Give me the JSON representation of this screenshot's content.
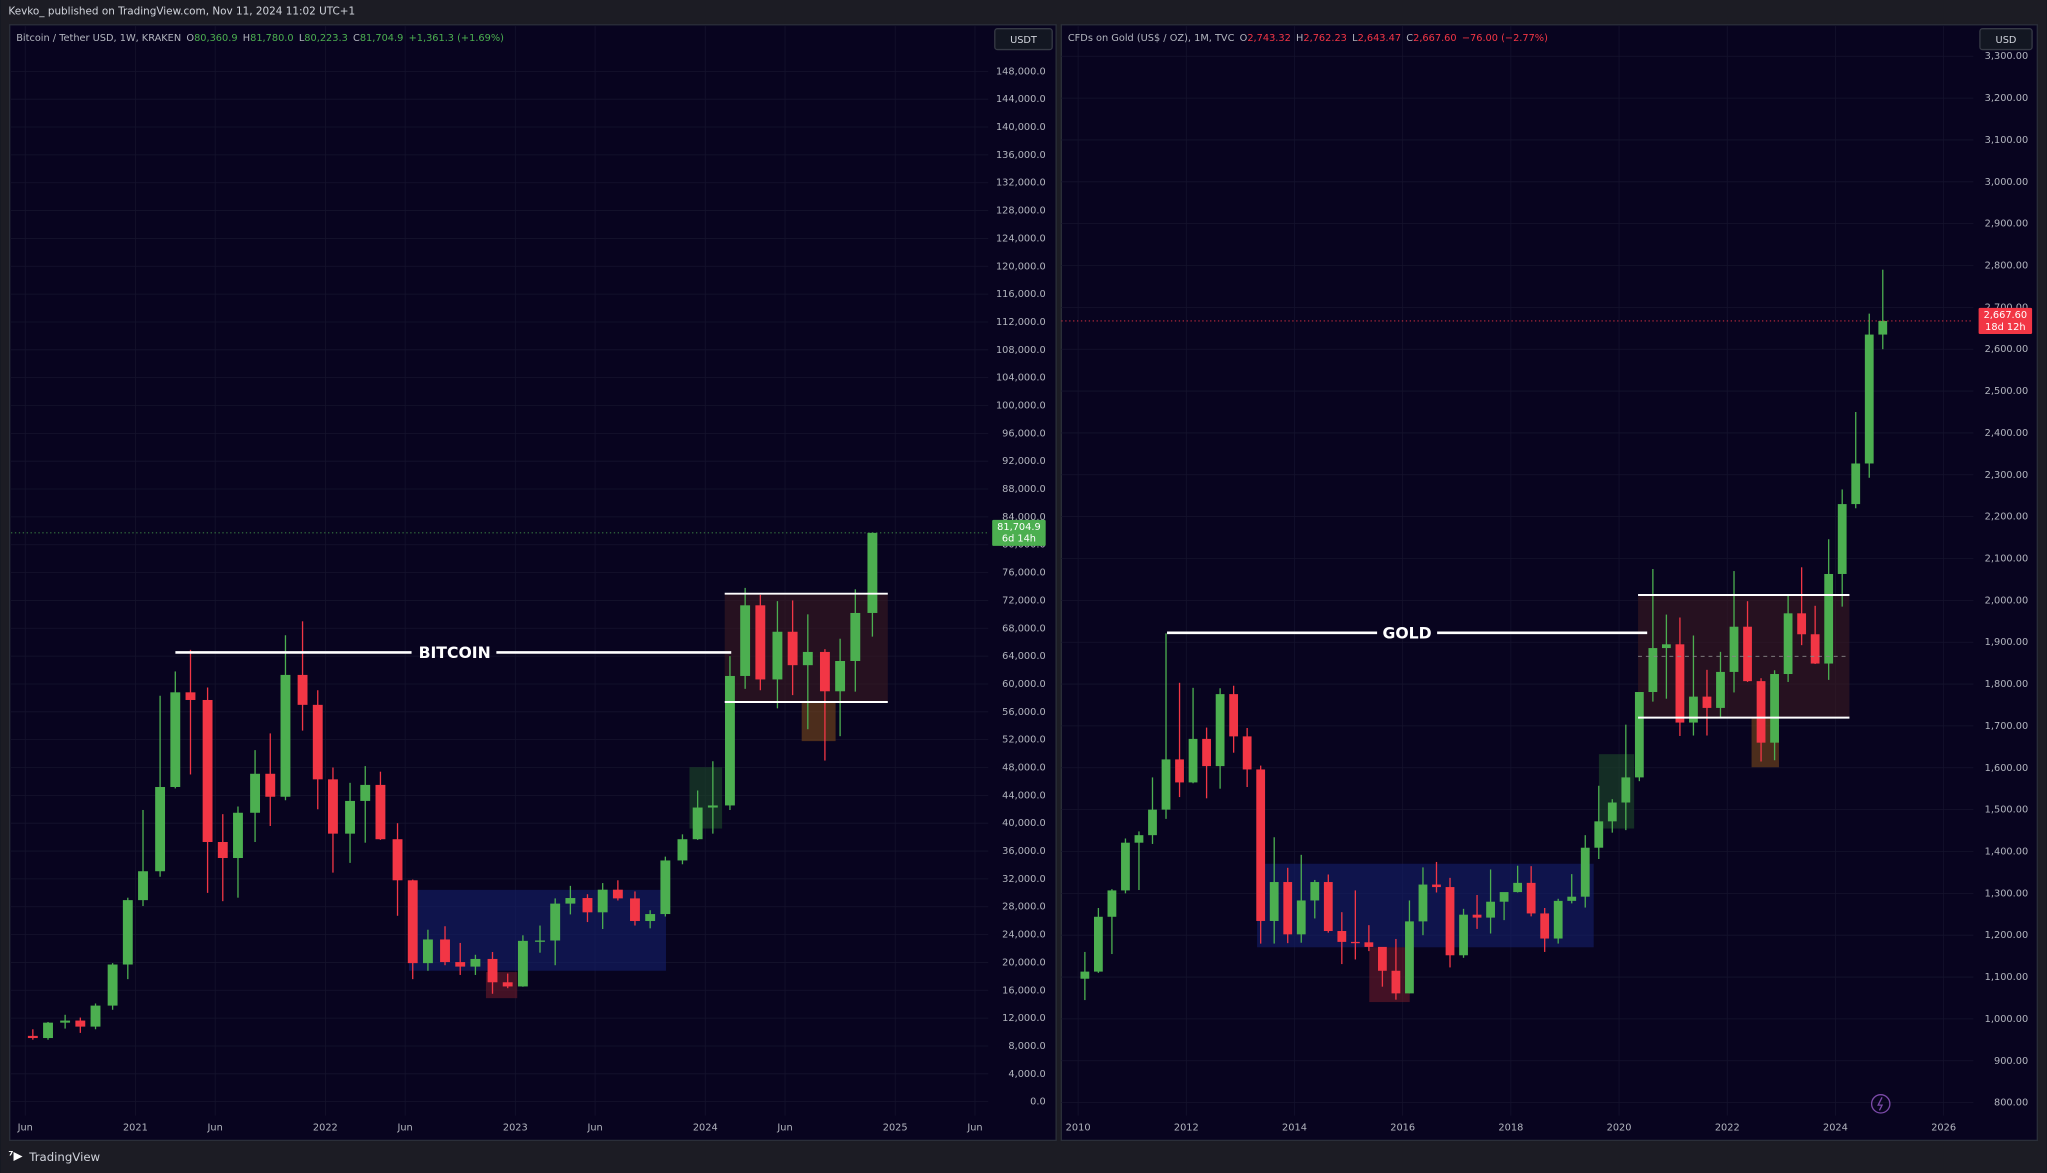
{
  "header": {
    "author": "Kevko_ published on TradingView.com, Nov 11, 2024 11:02 UTC+1"
  },
  "footer": {
    "brand": "TradingView"
  },
  "chart_data": [
    {
      "type": "candlestick",
      "legend": {
        "symbol": "Bitcoin / Tether USD, 1W, KRAKEN",
        "color": "#4caf50",
        "ohlc": [
          {
            "label": "O",
            "value": "80,360.9"
          },
          {
            "label": "H",
            "value": "81,780.0"
          },
          {
            "label": "L",
            "value": "80,223.3"
          },
          {
            "label": "C",
            "value": "81,704.9"
          }
        ],
        "change": "+1,361.3 (+1.69%)"
      },
      "currency": "USDT",
      "annotation": "BITCOIN",
      "price_tag": {
        "price": "81,704.9",
        "countdown": "6d 14h",
        "color": "#4caf50"
      },
      "up_color": "#4caf50",
      "down_color": "#f23645",
      "grid": true,
      "xlim": [
        2020.345,
        2025.49
      ],
      "xticks": [
        {
          "value": 2020.42,
          "label": "Jun"
        },
        {
          "value": 2021,
          "label": "2021"
        },
        {
          "value": 2021.42,
          "label": "Jun"
        },
        {
          "value": 2022,
          "label": "2022"
        },
        {
          "value": 2022.42,
          "label": "Jun"
        },
        {
          "value": 2023,
          "label": "2023"
        },
        {
          "value": 2023.42,
          "label": "Jun"
        },
        {
          "value": 2024,
          "label": "2024"
        },
        {
          "value": 2024.42,
          "label": "Jun"
        },
        {
          "value": 2025,
          "label": "2025"
        },
        {
          "value": 2025.42,
          "label": "Jun"
        }
      ],
      "ylim": [
        -2000,
        154500
      ],
      "yticks": [
        {
          "value": 0,
          "label": "0.0"
        },
        {
          "value": 4000,
          "label": "4,000.0"
        },
        {
          "value": 8000,
          "label": "8,000.0"
        },
        {
          "value": 12000,
          "label": "12,000.0"
        },
        {
          "value": 16000,
          "label": "16,000.0"
        },
        {
          "value": 20000,
          "label": "20,000.0"
        },
        {
          "value": 24000,
          "label": "24,000.0"
        },
        {
          "value": 28000,
          "label": "28,000.0"
        },
        {
          "value": 32000,
          "label": "32,000.0"
        },
        {
          "value": 36000,
          "label": "36,000.0"
        },
        {
          "value": 40000,
          "label": "40,000.0"
        },
        {
          "value": 44000,
          "label": "44,000.0"
        },
        {
          "value": 48000,
          "label": "48,000.0"
        },
        {
          "value": 52000,
          "label": "52,000.0"
        },
        {
          "value": 56000,
          "label": "56,000.0"
        },
        {
          "value": 60000,
          "label": "60,000.0"
        },
        {
          "value": 64000,
          "label": "64,000.0"
        },
        {
          "value": 68000,
          "label": "68,000.0"
        },
        {
          "value": 72000,
          "label": "72,000.0"
        },
        {
          "value": 76000,
          "label": "76,000.0"
        },
        {
          "value": 80000,
          "label": "80,000.0"
        },
        {
          "value": 84000,
          "label": "84,000.0"
        },
        {
          "value": 88000,
          "label": "88,000.0"
        },
        {
          "value": 92000,
          "label": "92,000.0"
        },
        {
          "value": 96000,
          "label": "96,000.0"
        },
        {
          "value": 100000,
          "label": "100,000.0"
        },
        {
          "value": 104000,
          "label": "104,000.0"
        },
        {
          "value": 108000,
          "label": "108,000.0"
        },
        {
          "value": 112000,
          "label": "112,000.0"
        },
        {
          "value": 116000,
          "label": "116,000.0"
        },
        {
          "value": 120000,
          "label": "120,000.0"
        },
        {
          "value": 124000,
          "label": "124,000.0"
        },
        {
          "value": 128000,
          "label": "128,000.0"
        },
        {
          "value": 132000,
          "label": "132,000.0"
        },
        {
          "value": 136000,
          "label": "136,000.0"
        },
        {
          "value": 140000,
          "label": "140,000.0"
        },
        {
          "value": 144000,
          "label": "144,000.0"
        },
        {
          "value": 148000,
          "label": "148,000.0"
        }
      ],
      "x": [
        2020.46,
        2020.54,
        2020.63,
        2020.71,
        2020.79,
        2020.88,
        2020.96,
        2021.04,
        2021.13,
        2021.21,
        2021.29,
        2021.38,
        2021.46,
        2021.54,
        2021.63,
        2021.71,
        2021.79,
        2021.88,
        2021.96,
        2022.04,
        2022.13,
        2022.21,
        2022.29,
        2022.38,
        2022.46,
        2022.54,
        2022.63,
        2022.71,
        2022.79,
        2022.88,
        2022.96,
        2023.04,
        2023.13,
        2023.21,
        2023.29,
        2023.38,
        2023.46,
        2023.54,
        2023.63,
        2023.71,
        2023.79,
        2023.88,
        2023.96,
        2024.04,
        2024.13,
        2024.21,
        2024.29,
        2024.38,
        2024.46,
        2024.54,
        2024.63,
        2024.71,
        2024.79,
        2024.88
      ],
      "open": [
        9450,
        9140,
        11350,
        11650,
        10780,
        13800,
        19700,
        28950,
        33100,
        45200,
        58800,
        57700,
        37300,
        35000,
        41500,
        47100,
        43800,
        61300,
        57000,
        46300,
        38500,
        43200,
        45500,
        37700,
        31800,
        19900,
        23300,
        20050,
        19400,
        20500,
        17150,
        16550,
        23100,
        23150,
        28450,
        29250,
        27200,
        30450,
        29200,
        25950,
        26950,
        34650,
        37700,
        42250,
        42550,
        61150,
        71300,
        60650,
        67500,
        62700,
        64600,
        58950,
        63300,
        70200
      ],
      "high": [
        10400,
        11450,
        12480,
        12080,
        14100,
        19900,
        29300,
        41900,
        58300,
        61800,
        64900,
        59500,
        41300,
        42400,
        50500,
        52900,
        67000,
        69000,
        59100,
        48000,
        45800,
        48200,
        47400,
        40000,
        31900,
        24700,
        25200,
        22800,
        21100,
        21500,
        18400,
        23900,
        25300,
        29200,
        31000,
        29800,
        31400,
        31800,
        30200,
        27500,
        35200,
        38400,
        44700,
        48900,
        64000,
        73800,
        72800,
        71900,
        72000,
        70000,
        65000,
        66500,
        73600,
        81780
      ],
      "low": [
        8900,
        8900,
        10500,
        9880,
        10400,
        13200,
        17600,
        28100,
        32300,
        45000,
        47000,
        30000,
        28800,
        29300,
        37300,
        39600,
        43300,
        53300,
        42000,
        32900,
        34300,
        37200,
        37600,
        26700,
        17600,
        18800,
        19600,
        18200,
        18200,
        15500,
        16300,
        16500,
        21400,
        19600,
        26900,
        25800,
        24800,
        28900,
        25300,
        24900,
        26600,
        34100,
        37600,
        38500,
        41900,
        59300,
        59100,
        56500,
        58400,
        53500,
        49000,
        52500,
        58900,
        66800
      ],
      "close": [
        9140,
        11350,
        11650,
        10780,
        13800,
        19700,
        28950,
        33100,
        45200,
        58800,
        57700,
        37300,
        35000,
        41500,
        47100,
        43800,
        61300,
        57000,
        46300,
        38500,
        43200,
        45500,
        37700,
        31800,
        19900,
        23300,
        20050,
        19400,
        20500,
        17150,
        16550,
        23100,
        23150,
        28450,
        29250,
        27200,
        30450,
        29200,
        25950,
        26950,
        34650,
        37700,
        42250,
        42550,
        61150,
        71300,
        60650,
        67500,
        62700,
        64600,
        58950,
        63300,
        70200,
        81704.9
      ]
    },
    {
      "type": "candlestick",
      "legend": {
        "symbol": "CFDs on Gold (US$ / OZ), 1M, TVC",
        "color": "#f23645",
        "ohlc": [
          {
            "label": "O",
            "value": "2,743.32"
          },
          {
            "label": "H",
            "value": "2,762.23"
          },
          {
            "label": "L",
            "value": "2,643.47"
          },
          {
            "label": "C",
            "value": "2,667.60"
          }
        ],
        "change": "−76.00 (−2.77%)"
      },
      "currency": "USD",
      "annotation": "GOLD",
      "price_tag": {
        "price": "2,667.60",
        "countdown": "18d 12h",
        "color": "#f23645"
      },
      "up_color": "#4caf50",
      "down_color": "#f23645",
      "grid": true,
      "xlim": [
        2009.69,
        2026.55
      ],
      "xticks": [
        2010,
        2012,
        2014,
        2016,
        2018,
        2020,
        2022,
        2024,
        2026
      ],
      "ylim": [
        769,
        3372
      ],
      "yticks": [
        {
          "value": 800,
          "label": "800.00"
        },
        {
          "value": 900,
          "label": "900.00"
        },
        {
          "value": 1000,
          "label": "1,000.00"
        },
        {
          "value": 1100,
          "label": "1,100.00"
        },
        {
          "value": 1200,
          "label": "1,200.00"
        },
        {
          "value": 1300,
          "label": "1,300.00"
        },
        {
          "value": 1400,
          "label": "1,400.00"
        },
        {
          "value": 1500,
          "label": "1,500.00"
        },
        {
          "value": 1600,
          "label": "1,600.00"
        },
        {
          "value": 1700,
          "label": "1,700.00"
        },
        {
          "value": 1800,
          "label": "1,800.00"
        },
        {
          "value": 1900,
          "label": "1,900.00"
        },
        {
          "value": 2000,
          "label": "2,000.00"
        },
        {
          "value": 2100,
          "label": "2,100.00"
        },
        {
          "value": 2200,
          "label": "2,200.00"
        },
        {
          "value": 2300,
          "label": "2,300.00"
        },
        {
          "value": 2400,
          "label": "2,400.00"
        },
        {
          "value": 2500,
          "label": "2,500.00"
        },
        {
          "value": 2600,
          "label": "2,600.00"
        },
        {
          "value": 2700,
          "label": "2,700.00"
        },
        {
          "value": 2800,
          "label": "2,800.00"
        },
        {
          "value": 2900,
          "label": "2,900.00"
        },
        {
          "value": 3000,
          "label": "3,000.00"
        },
        {
          "value": 3100,
          "label": "3,100.00"
        },
        {
          "value": 3200,
          "label": "3,200.00"
        },
        {
          "value": 3300,
          "label": "3,300.00"
        }
      ],
      "x": [
        2010.125,
        2010.375,
        2010.625,
        2010.875,
        2011.125,
        2011.375,
        2011.625,
        2011.875,
        2012.125,
        2012.375,
        2012.625,
        2012.875,
        2013.125,
        2013.375,
        2013.625,
        2013.875,
        2014.125,
        2014.375,
        2014.625,
        2014.875,
        2015.125,
        2015.375,
        2015.625,
        2015.875,
        2016.125,
        2016.375,
        2016.625,
        2016.875,
        2017.125,
        2017.375,
        2017.625,
        2017.875,
        2018.125,
        2018.375,
        2018.625,
        2018.875,
        2019.125,
        2019.375,
        2019.625,
        2019.875,
        2020.125,
        2020.375,
        2020.625,
        2020.875,
        2021.125,
        2021.375,
        2021.625,
        2021.875,
        2022.125,
        2022.375,
        2022.625,
        2022.875,
        2023.125,
        2023.375,
        2023.625,
        2023.875,
        2024.125,
        2024.375,
        2024.625,
        2024.875
      ],
      "open": [
        1096,
        1113,
        1244,
        1307,
        1421,
        1439,
        1500,
        1620,
        1565,
        1669,
        1604,
        1776,
        1675,
        1596,
        1234,
        1327,
        1202,
        1283,
        1327,
        1210,
        1184,
        1183,
        1172,
        1115,
        1061,
        1233,
        1321,
        1315,
        1152,
        1249,
        1242,
        1280,
        1303,
        1325,
        1252,
        1192,
        1282,
        1292,
        1409,
        1472,
        1517,
        1577,
        1781,
        1886,
        1895,
        1708,
        1770,
        1743,
        1829,
        1937,
        1807,
        1660,
        1824,
        1969,
        1919,
        1849,
        2063,
        2230,
        2327,
        2635
      ],
      "high": [
        1160,
        1265,
        1310,
        1431,
        1448,
        1577,
        1921,
        1803,
        1791,
        1696,
        1790,
        1796,
        1695,
        1605,
        1434,
        1361,
        1392,
        1332,
        1345,
        1255,
        1307,
        1224,
        1170,
        1191,
        1283,
        1362,
        1375,
        1337,
        1263,
        1296,
        1357,
        1300,
        1366,
        1365,
        1265,
        1287,
        1346,
        1439,
        1557,
        1525,
        1703,
        1779,
        2075,
        1966,
        1959,
        1916,
        1834,
        1877,
        2070,
        1998,
        1814,
        1833,
        2014,
        2079,
        1987,
        2146,
        2265,
        2450,
        2685,
        2790
      ],
      "low": [
        1045,
        1110,
        1155,
        1300,
        1308,
        1418,
        1478,
        1530,
        1563,
        1527,
        1550,
        1636,
        1554,
        1180,
        1180,
        1181,
        1182,
        1240,
        1206,
        1131,
        1142,
        1162,
        1077,
        1046,
        1061,
        1200,
        1302,
        1123,
        1146,
        1215,
        1204,
        1236,
        1302,
        1245,
        1160,
        1180,
        1276,
        1266,
        1382,
        1445,
        1451,
        1568,
        1758,
        1765,
        1676,
        1677,
        1677,
        1721,
        1780,
        1805,
        1615,
        1618,
        1805,
        1893,
        1848,
        1810,
        1985,
        2220,
        2293,
        2600
      ],
      "close": [
        1113,
        1244,
        1307,
        1421,
        1439,
        1500,
        1620,
        1565,
        1669,
        1604,
        1776,
        1675,
        1596,
        1234,
        1327,
        1202,
        1283,
        1327,
        1210,
        1184,
        1183,
        1172,
        1115,
        1061,
        1233,
        1321,
        1315,
        1152,
        1249,
        1242,
        1280,
        1303,
        1325,
        1252,
        1192,
        1282,
        1292,
        1409,
        1472,
        1517,
        1577,
        1781,
        1886,
        1895,
        1708,
        1770,
        1743,
        1829,
        1937,
        1807,
        1660,
        1824,
        1969,
        1919,
        1849,
        2063,
        2230,
        2327,
        2635,
        2667.6
      ]
    }
  ]
}
